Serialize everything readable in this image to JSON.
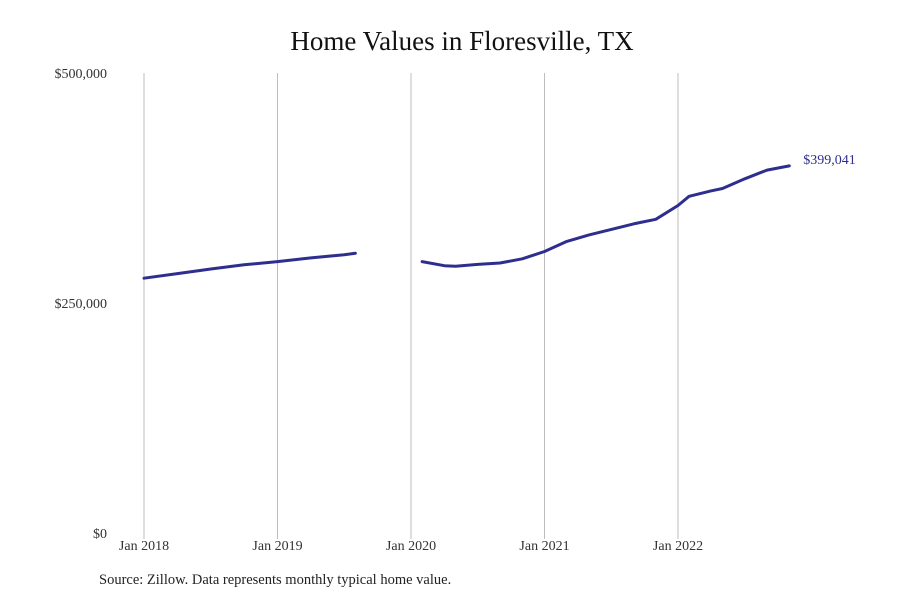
{
  "chart_data": {
    "type": "line",
    "title": "Home Values in Floresville, TX",
    "xlabel": "",
    "ylabel": "",
    "ylim": [
      0,
      500000
    ],
    "y_ticks": [
      {
        "value": 0,
        "label": "$0"
      },
      {
        "value": 250000,
        "label": "$250,000"
      },
      {
        "value": 500000,
        "label": "$500,000"
      }
    ],
    "x_ticks": [
      {
        "date": "2018-01",
        "label": "Jan 2018"
      },
      {
        "date": "2019-01",
        "label": "Jan 2019"
      },
      {
        "date": "2020-01",
        "label": "Jan 2020"
      },
      {
        "date": "2021-01",
        "label": "Jan 2021"
      },
      {
        "date": "2022-01",
        "label": "Jan 2022"
      }
    ],
    "xlim": [
      "2018-01",
      "2023-04"
    ],
    "grid": "vertical",
    "series": [
      {
        "color": "#2e2e8f",
        "segments": [
          [
            {
              "x": "2018-01",
              "y": 277000
            },
            {
              "x": "2018-04",
              "y": 282000
            },
            {
              "x": "2018-07",
              "y": 287000
            },
            {
              "x": "2018-10",
              "y": 291500
            },
            {
              "x": "2019-01",
              "y": 295000
            },
            {
              "x": "2019-04",
              "y": 299000
            },
            {
              "x": "2019-07",
              "y": 302500
            },
            {
              "x": "2019-08",
              "y": 304000
            }
          ],
          [
            {
              "x": "2020-02",
              "y": 295000
            },
            {
              "x": "2020-04",
              "y": 290500
            },
            {
              "x": "2020-05",
              "y": 290000
            },
            {
              "x": "2020-07",
              "y": 292000
            },
            {
              "x": "2020-09",
              "y": 293500
            },
            {
              "x": "2020-11",
              "y": 298000
            },
            {
              "x": "2021-01",
              "y": 306000
            },
            {
              "x": "2021-03",
              "y": 317000
            },
            {
              "x": "2021-05",
              "y": 324000
            },
            {
              "x": "2021-07",
              "y": 330000
            },
            {
              "x": "2021-09",
              "y": 336000
            },
            {
              "x": "2021-11",
              "y": 341000
            },
            {
              "x": "2022-01",
              "y": 356000
            },
            {
              "x": "2022-02",
              "y": 366000
            },
            {
              "x": "2022-04",
              "y": 372000
            },
            {
              "x": "2022-05",
              "y": 374500
            },
            {
              "x": "2022-07",
              "y": 385000
            },
            {
              "x": "2022-09",
              "y": 394500
            },
            {
              "x": "2022-11",
              "y": 399041
            }
          ]
        ]
      }
    ],
    "end_label": "$399,041"
  },
  "footer": {
    "source": "Source: Zillow. Data represents monthly typical home value."
  }
}
